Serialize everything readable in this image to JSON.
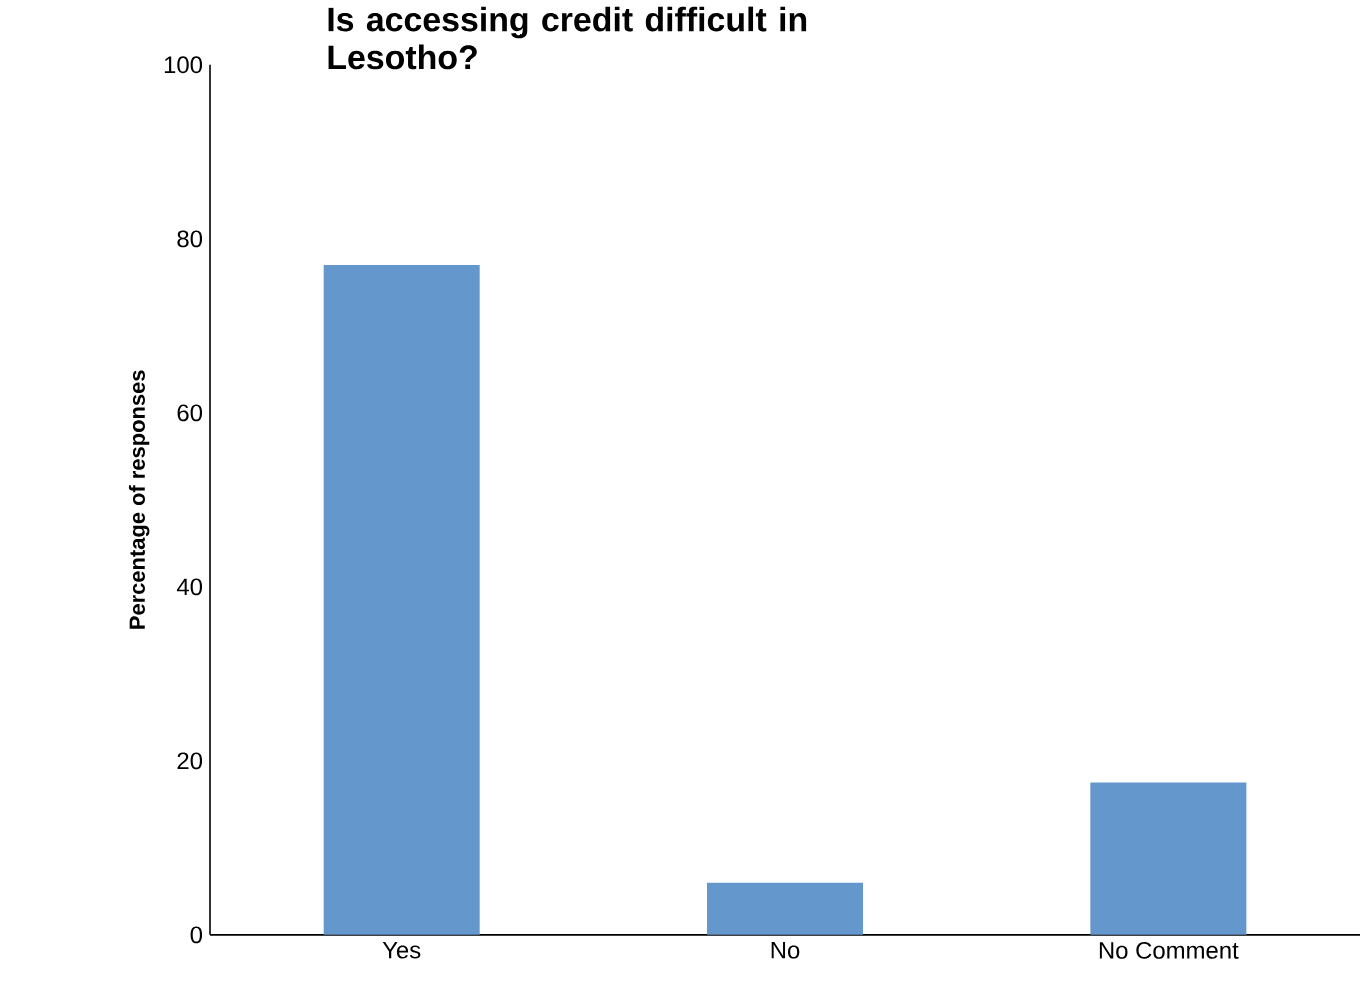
{
  "chart_data": {
    "type": "bar",
    "title": "Is accessing credit difficult in Lesotho?",
    "ylabel": "Percentage of responses",
    "categories": [
      "Yes",
      "No",
      "No Comment"
    ],
    "values": [
      77,
      6,
      17.5
    ],
    "color": "#6497cb",
    "ylim": [
      0,
      100
    ],
    "yticks": [
      0,
      20,
      40,
      60,
      80,
      100
    ],
    "grid": false
  }
}
